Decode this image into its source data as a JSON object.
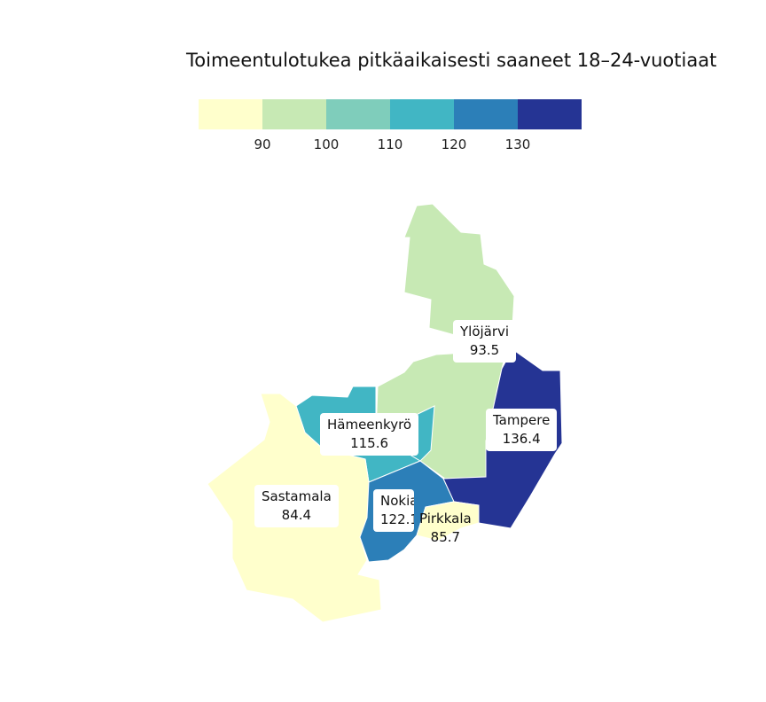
{
  "title": "Toimeentulotukea pitkäaikaisesti saaneet 18–24-vuotiaat",
  "legend": {
    "colors": [
      "#ffffcc",
      "#c7e9b4",
      "#7fcdbb",
      "#41b6c4",
      "#2c7fb8",
      "#253494"
    ],
    "ticks": [
      "90",
      "100",
      "110",
      "120",
      "130"
    ]
  },
  "regions": [
    {
      "name": "Ylöjärvi",
      "value": "93.5",
      "color": "#c7e9b4"
    },
    {
      "name": "Tampere",
      "value": "136.4",
      "color": "#253494"
    },
    {
      "name": "Hämeenkyrö",
      "value": "115.6",
      "color": "#41b6c4"
    },
    {
      "name": "Sastamala",
      "value": "84.4",
      "color": "#ffffcc"
    },
    {
      "name": "Nokia",
      "value": "122.1",
      "color": "#2c7fb8"
    },
    {
      "name": "Pirkkala",
      "value": "85.7",
      "color": "#ffffcc"
    }
  ]
}
